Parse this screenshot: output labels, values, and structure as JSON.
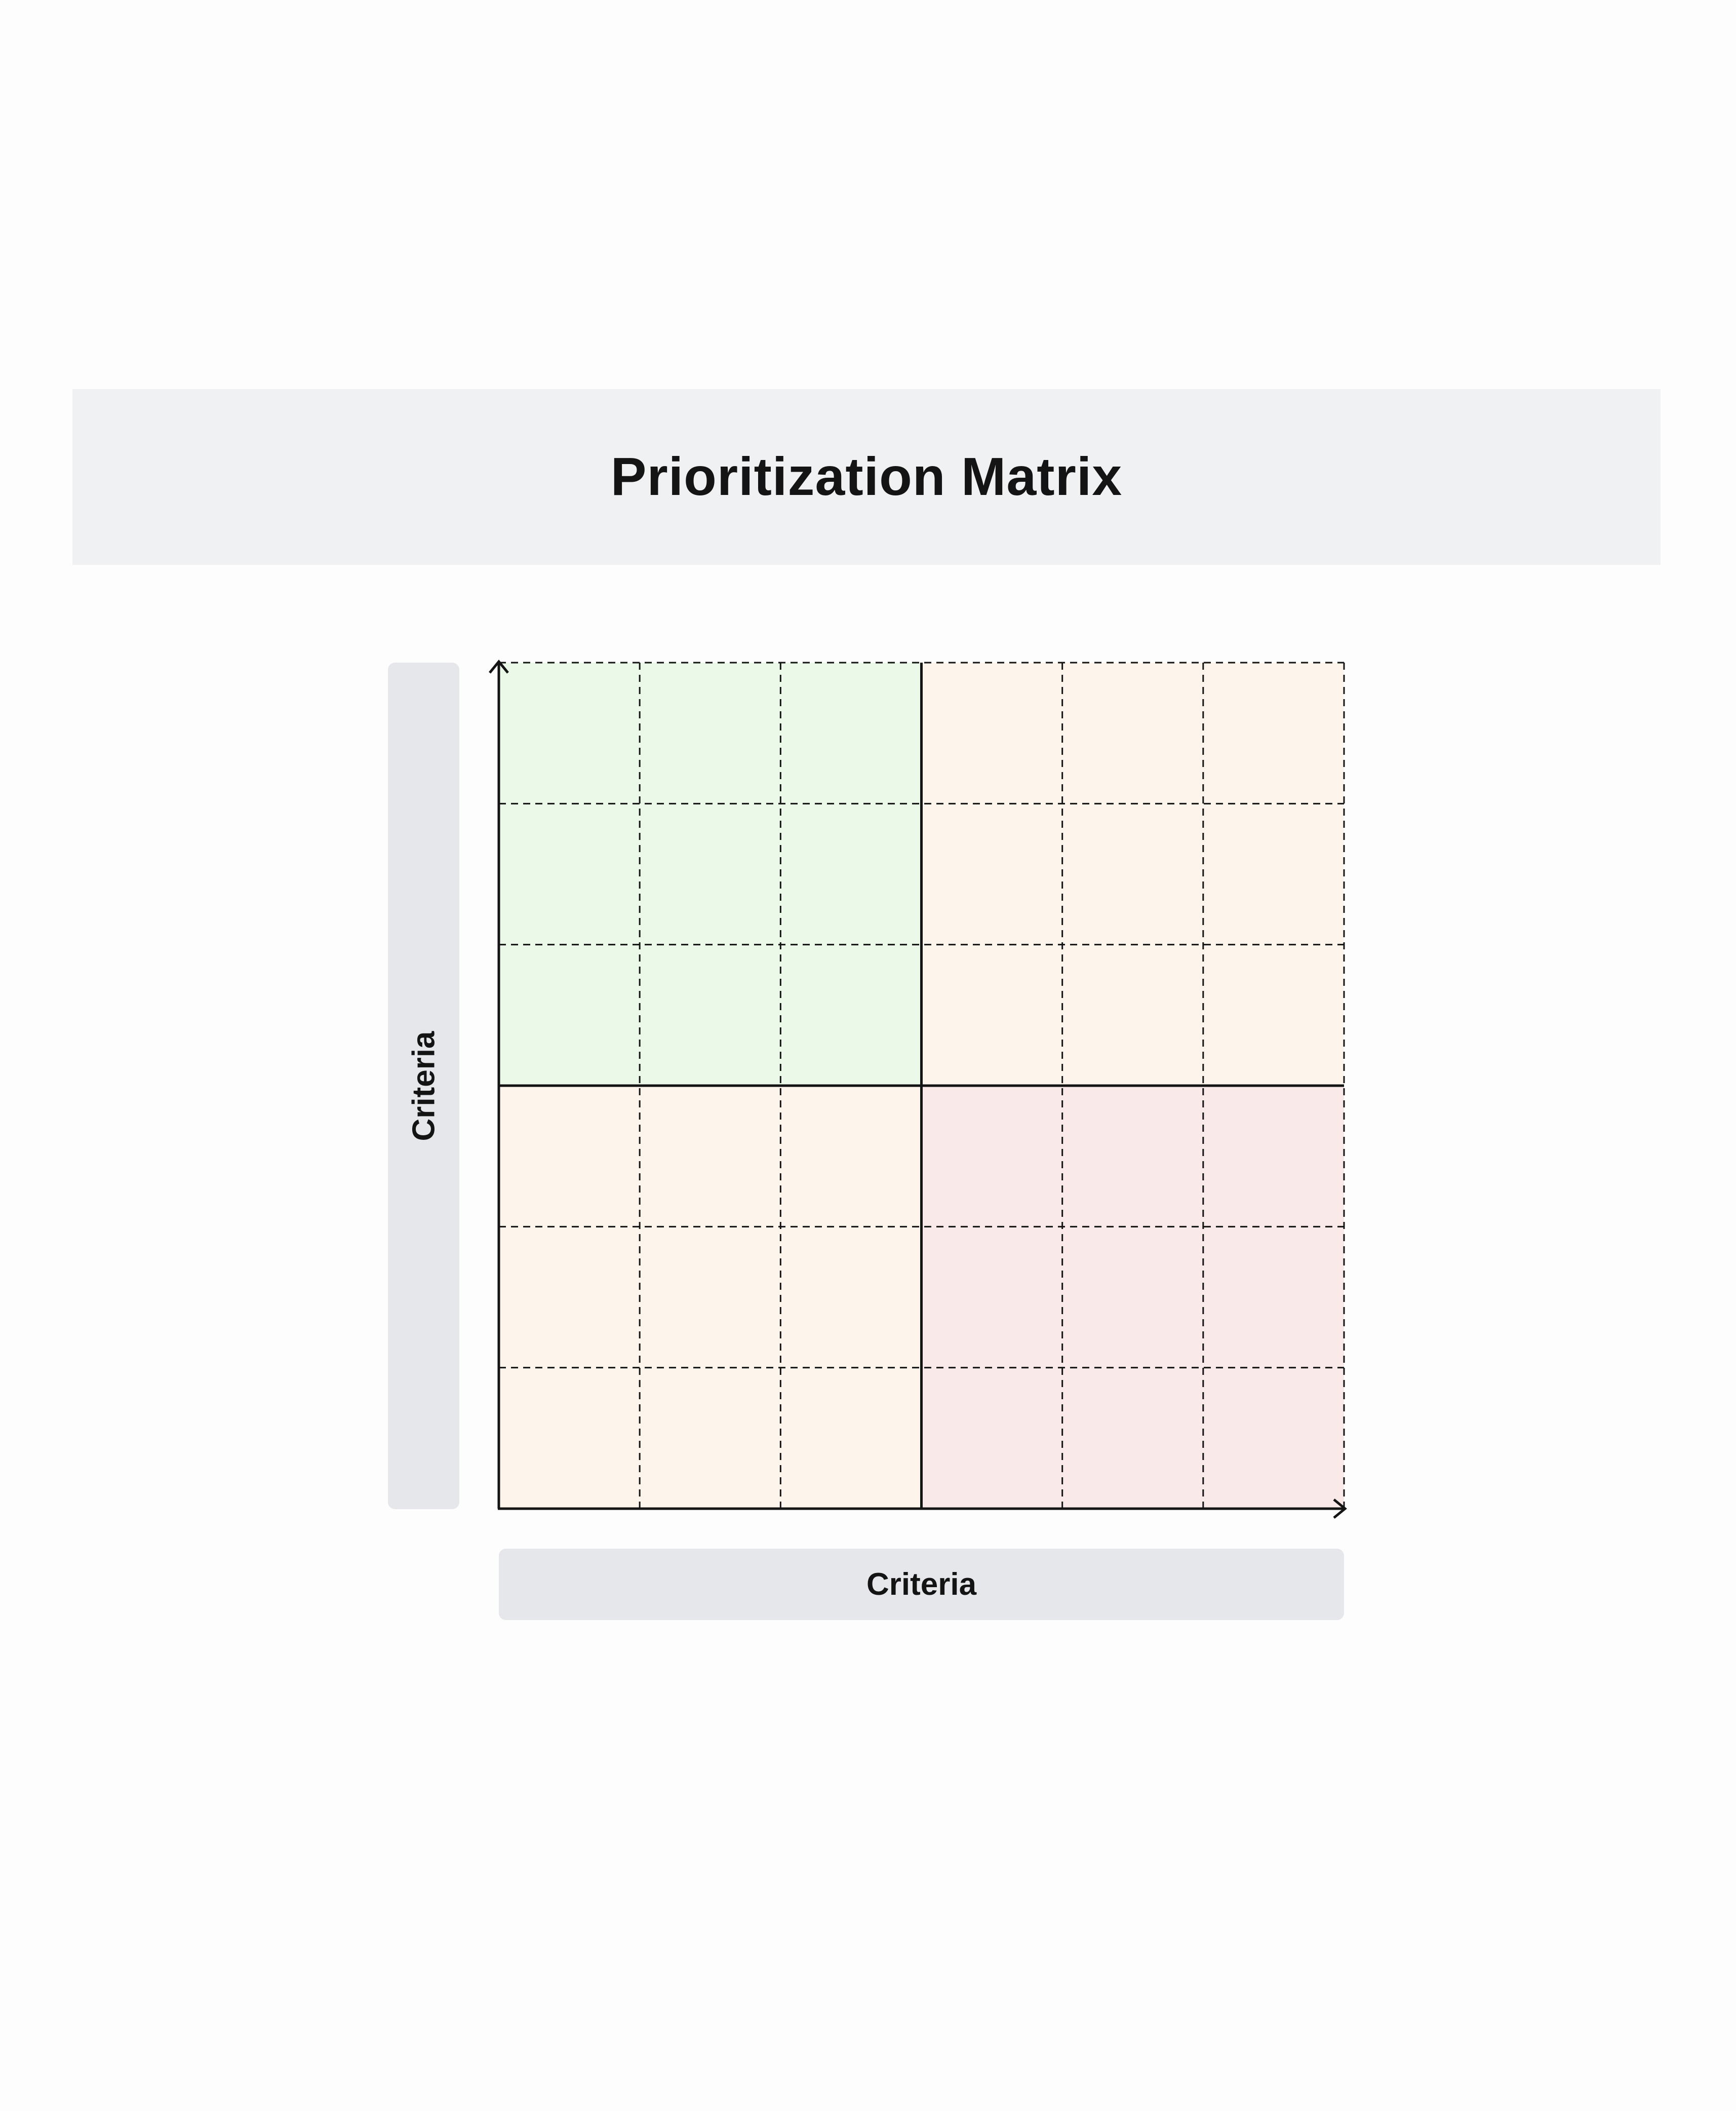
{
  "title": "Prioritization Matrix",
  "axes": {
    "y_label": "Criteria",
    "x_label": "Criteria"
  },
  "matrix": {
    "quadrants": [
      {
        "position": "top-left",
        "color": "#eaf9e8"
      },
      {
        "position": "top-right",
        "color": "#fdf5ec"
      },
      {
        "position": "bottom-left",
        "color": "#fdf5ec"
      },
      {
        "position": "bottom-right",
        "color": "#fae9e9"
      }
    ],
    "grid_lines": "dashed",
    "line_color": "#141414"
  }
}
